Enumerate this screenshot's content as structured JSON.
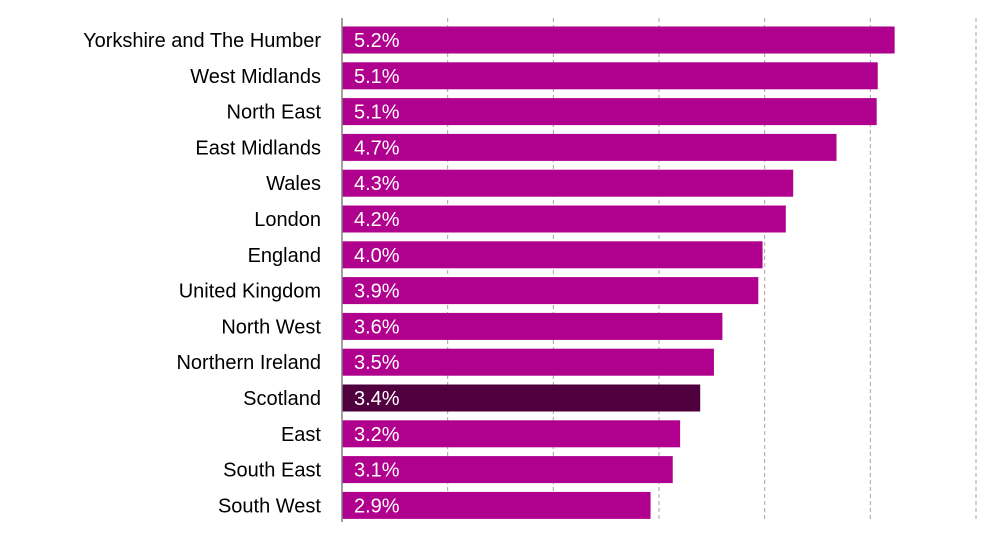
{
  "chart_data": {
    "type": "bar",
    "orientation": "horizontal",
    "categories": [
      "Yorkshire and The Humber",
      "West Midlands",
      "North East",
      "East Midlands",
      "Wales",
      "London",
      "England",
      "United Kingdom",
      "North West",
      "Northern Ireland",
      "Scotland",
      "East",
      "South East",
      "South West"
    ],
    "values": [
      5.23,
      5.07,
      5.06,
      4.68,
      4.27,
      4.2,
      3.98,
      3.94,
      3.6,
      3.52,
      3.39,
      3.2,
      3.13,
      2.92
    ],
    "value_labels": [
      "5.2%",
      "5.1%",
      "5.1%",
      "4.7%",
      "4.3%",
      "4.2%",
      "4.0%",
      "3.9%",
      "3.6%",
      "3.5%",
      "3.4%",
      "3.2%",
      "3.1%",
      "2.9%"
    ],
    "highlight": "Scotland",
    "colors": {
      "bar": "#b0008e",
      "highlight": "#51003f"
    },
    "xlim": [
      0,
      6
    ],
    "grid": true,
    "legend": "none"
  }
}
